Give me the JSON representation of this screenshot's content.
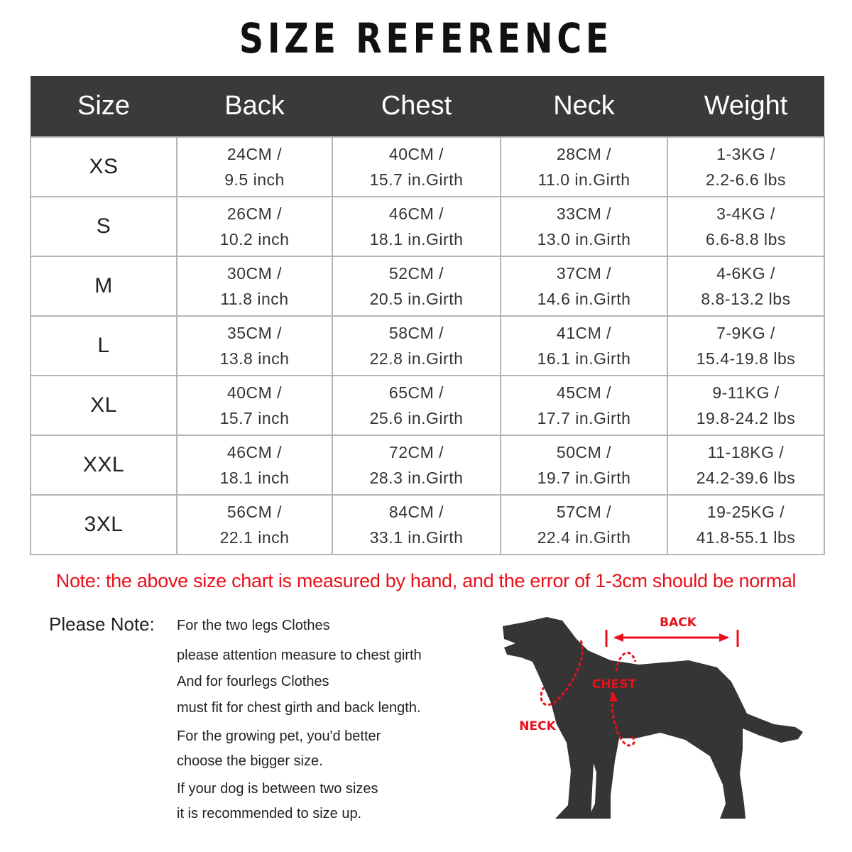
{
  "title": "SIZE REFERENCE",
  "table": {
    "headers": [
      "Size",
      "Back",
      "Chest",
      "Neck",
      "Weight"
    ],
    "rows": [
      {
        "size": "XS",
        "back": [
          "24CM /",
          "9.5 inch"
        ],
        "chest": [
          "40CM /",
          "15.7 in.Girth"
        ],
        "neck": [
          "28CM /",
          "11.0 in.Girth"
        ],
        "weight": [
          "1-3KG /",
          "2.2-6.6 lbs"
        ]
      },
      {
        "size": "S",
        "back": [
          "26CM /",
          "10.2 inch"
        ],
        "chest": [
          "46CM /",
          "18.1 in.Girth"
        ],
        "neck": [
          "33CM /",
          "13.0 in.Girth"
        ],
        "weight": [
          "3-4KG /",
          "6.6-8.8 lbs"
        ]
      },
      {
        "size": "M",
        "back": [
          "30CM /",
          "11.8 inch"
        ],
        "chest": [
          "52CM /",
          "20.5 in.Girth"
        ],
        "neck": [
          "37CM /",
          "14.6 in.Girth"
        ],
        "weight": [
          "4-6KG /",
          "8.8-13.2 lbs"
        ]
      },
      {
        "size": "L",
        "back": [
          "35CM /",
          "13.8 inch"
        ],
        "chest": [
          "58CM /",
          "22.8 in.Girth"
        ],
        "neck": [
          "41CM /",
          "16.1 in.Girth"
        ],
        "weight": [
          "7-9KG /",
          "15.4-19.8 lbs"
        ]
      },
      {
        "size": "XL",
        "back": [
          "40CM /",
          "15.7 inch"
        ],
        "chest": [
          "65CM /",
          "25.6 in.Girth"
        ],
        "neck": [
          "45CM /",
          "17.7 in.Girth"
        ],
        "weight": [
          "9-11KG /",
          "19.8-24.2 lbs"
        ]
      },
      {
        "size": "XXL",
        "back": [
          "46CM /",
          "18.1 inch"
        ],
        "chest": [
          "72CM /",
          "28.3 in.Girth"
        ],
        "neck": [
          "50CM /",
          "19.7 in.Girth"
        ],
        "weight": [
          "11-18KG /",
          "24.2-39.6 lbs"
        ]
      },
      {
        "size": "3XL",
        "back": [
          "56CM /",
          "22.1 inch"
        ],
        "chest": [
          "84CM /",
          "33.1 in.Girth"
        ],
        "neck": [
          "57CM /",
          "22.4 in.Girth"
        ],
        "weight": [
          "19-25KG /",
          "41.8-55.1 lbs"
        ]
      }
    ]
  },
  "note": "Note: the above size chart is measured by hand, and the error of 1-3cm should be normal",
  "please_note": {
    "label": "Please Note:",
    "lines": [
      "For the two legs Clothes",
      "please attention measure to chest girth",
      "And for fourlegs Clothes",
      "must fit for chest girth and back length.",
      "For the growing pet, you'd better",
      "choose the bigger size.",
      "If your dog is between two sizes",
      "it is recommended to size up."
    ]
  },
  "diagram": {
    "back": "BACK",
    "chest": "CHEST",
    "neck": "NECK"
  },
  "colors": {
    "header_bg": "#3a3a3a",
    "accent_red": "#e8101a",
    "dog": "#353535"
  }
}
